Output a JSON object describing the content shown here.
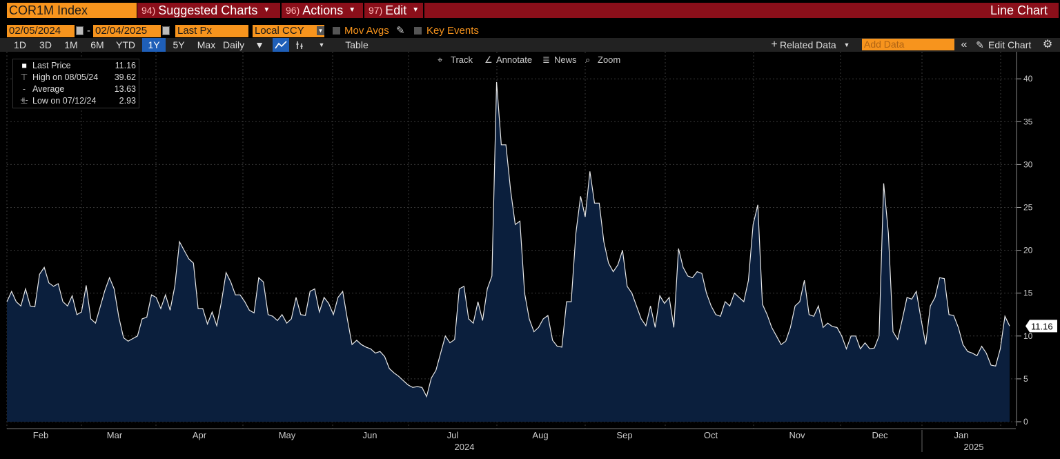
{
  "header": {
    "ticker": "COR1M Index",
    "menus": [
      {
        "num": "94)",
        "label": "Suggested Charts"
      },
      {
        "num": "96)",
        "label": "Actions"
      },
      {
        "num": "97)",
        "label": "Edit"
      }
    ],
    "chart_type": "Line Chart"
  },
  "controls": {
    "start_date": "02/05/2024",
    "date_sep": "-",
    "end_date": "02/04/2025",
    "field": "Last Px",
    "currency": "Local CCY",
    "mov_avgs": "Mov Avgs",
    "key_events": "Key Events"
  },
  "toolbar": {
    "ranges": [
      "1D",
      "3D",
      "1M",
      "6M",
      "YTD",
      "1Y",
      "5Y",
      "Max"
    ],
    "selected_range": "1Y",
    "frequency": "Daily",
    "table": "Table",
    "related_data": "Related Data",
    "add_data_placeholder": "Add Data",
    "edit_chart": "Edit Chart"
  },
  "chart_tools": {
    "track": "Track",
    "annotate": "Annotate",
    "news": "News",
    "zoom": "Zoom"
  },
  "legend": [
    {
      "name": "Last Price",
      "value": "11.16"
    },
    {
      "name": "High on 08/05/24",
      "value": "39.62"
    },
    {
      "name": "Average",
      "value": "13.63"
    },
    {
      "name": "Low on 07/12/24",
      "value": "2.93"
    }
  ],
  "colors": {
    "accent_orange": "#f7941d",
    "header_red": "#8b0f1a",
    "area_fill": "#0b1f3d",
    "line": "#e8e8e8"
  },
  "chart_data": {
    "type": "area",
    "title": "COR1M Index",
    "series": [
      {
        "name": "Last Price",
        "values": [
          14.0,
          15.2,
          14.0,
          13.5,
          15.5,
          13.5,
          13.4,
          17.2,
          18.0,
          16.2,
          15.8,
          16.1,
          14.0,
          13.5,
          14.7,
          12.5,
          12.8,
          15.9,
          12.0,
          11.5,
          13.4,
          15.3,
          16.8,
          15.5,
          12.2,
          9.8,
          9.4,
          9.7,
          10.0,
          12.0,
          12.2,
          14.8,
          14.5,
          13.2,
          14.8,
          13.0,
          15.8,
          21.0,
          20.0,
          19.0,
          18.5,
          13.2,
          13.2,
          11.4,
          12.8,
          11.2,
          14.0,
          17.4,
          16.3,
          14.8,
          14.8,
          14.0,
          13.0,
          12.7,
          16.8,
          16.3,
          12.5,
          12.3,
          11.8,
          12.5,
          11.5,
          12.0,
          14.5,
          12.5,
          12.4,
          15.2,
          15.5,
          12.8,
          14.5,
          13.8,
          12.5,
          14.5,
          15.2,
          12.0,
          9.0,
          9.5,
          9.0,
          8.7,
          8.5,
          8.0,
          8.2,
          7.6,
          6.2,
          5.7,
          5.3,
          4.8,
          4.3,
          4.0,
          4.1,
          4.0,
          2.93,
          5.1,
          6.0,
          8.0,
          10.0,
          9.2,
          9.6,
          15.5,
          15.8,
          12.0,
          11.5,
          14.0,
          11.8,
          15.5,
          17.0,
          39.62,
          32.3,
          32.3,
          27.0,
          23.0,
          23.4,
          15.0,
          12.0,
          10.5,
          11.0,
          12.0,
          12.4,
          9.5,
          8.8,
          8.7,
          14.0,
          14.0,
          22.0,
          26.3,
          23.9,
          29.2,
          25.5,
          25.5,
          21.0,
          18.5,
          17.5,
          18.3,
          20.0,
          15.8,
          15.0,
          13.5,
          12.0,
          11.2,
          13.5,
          11.0,
          14.7,
          13.8,
          14.5,
          11.0,
          20.2,
          18.0,
          17.0,
          16.8,
          17.5,
          17.3,
          15.0,
          13.5,
          12.5,
          12.3,
          14.0,
          13.5,
          15.0,
          14.5,
          14.0,
          16.5,
          23.0,
          25.3,
          13.7,
          12.5,
          11.0,
          10.0,
          9.0,
          9.4,
          11.0,
          13.5,
          14.0,
          16.5,
          12.5,
          12.3,
          13.5,
          11.0,
          11.5,
          11.1,
          11.0,
          10.0,
          8.5,
          10.0,
          10.0,
          8.5,
          9.2,
          8.5,
          8.6,
          10.0,
          27.8,
          22.0,
          10.5,
          9.6,
          12.0,
          14.5,
          14.3,
          15.2,
          12.0,
          9.0,
          13.5,
          14.5,
          16.8,
          16.7,
          12.5,
          12.4,
          11.0,
          9.0,
          8.2,
          8.0,
          7.7,
          8.8,
          8.0,
          6.6,
          6.5,
          8.5,
          12.3,
          11.16
        ]
      }
    ],
    "x_labels": [
      "Feb",
      "Mar",
      "Apr",
      "May",
      "Jun",
      "Jul",
      "Aug",
      "Sep",
      "Oct",
      "Nov",
      "Dec",
      "Jan"
    ],
    "year_labels": [
      "2024",
      "2025"
    ],
    "y_ticks": [
      0,
      5,
      10,
      15,
      20,
      25,
      30,
      35,
      40
    ],
    "ylim": [
      0,
      42
    ],
    "last_value_label": "11.16",
    "grid": true
  }
}
